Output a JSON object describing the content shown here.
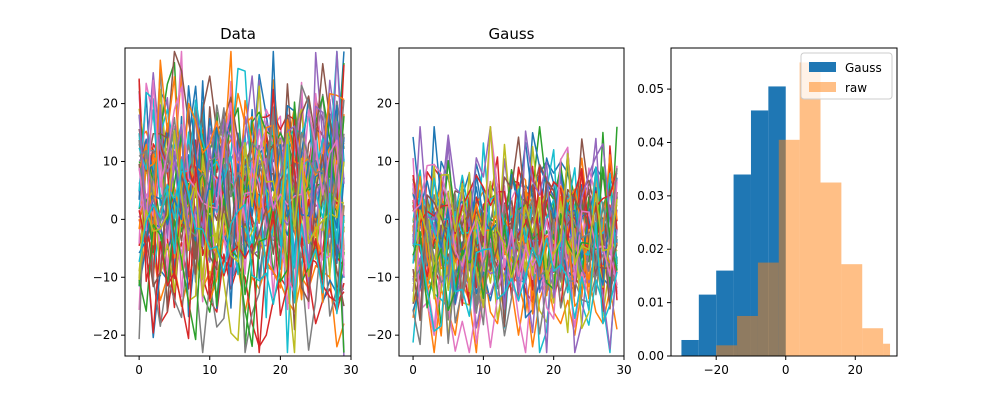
{
  "colors": {
    "cycle": [
      "#1f77b4",
      "#ff7f0e",
      "#2ca02c",
      "#d62728",
      "#9467bd",
      "#8c564b",
      "#e377c2",
      "#7f7f7f",
      "#bcbd22",
      "#17becf"
    ],
    "gauss_bar": "#1f77b4",
    "raw_bar": "#ff7f0e"
  },
  "chart_data": [
    {
      "type": "line",
      "title": "Data",
      "xlabel": "",
      "ylabel": "",
      "xlim": [
        -2,
        30
      ],
      "ylim": [
        -23.6,
        29.6
      ],
      "xticks": [
        0,
        10,
        20,
        30
      ],
      "yticks": [
        -20,
        -10,
        0,
        10,
        20
      ],
      "line_count": 50,
      "points_per_line": 30,
      "value_range_approx": [
        -23,
        29
      ],
      "series": [
        {
          "values": [
            13,
            9,
            8,
            22,
            20,
            2,
            5,
            14,
            23,
            6,
            10,
            4,
            7,
            18,
            5,
            8,
            9,
            25,
            18,
            10,
            12,
            14,
            8,
            6,
            10,
            9,
            12,
            11,
            10,
            29
          ]
        },
        {
          "values": [
            -11,
            -3,
            -5,
            -14,
            -10,
            -8,
            -15,
            -10,
            -6,
            -12,
            -9,
            -13,
            -7,
            -10,
            -8,
            -16,
            -10,
            -12,
            -8,
            -9,
            -11,
            -14,
            -16,
            -10,
            -12,
            -8,
            -9,
            -10,
            -22,
            -18
          ]
        },
        {
          "values": [
            10,
            8,
            12,
            4,
            2,
            -4,
            -2,
            8,
            10,
            5,
            12,
            15,
            6,
            -3,
            5,
            -22,
            -7,
            4,
            2,
            6,
            8,
            5,
            2,
            1,
            -2,
            -6,
            4,
            2,
            10,
            27
          ]
        },
        {
          "values": [
            0,
            -5,
            2,
            -18,
            -16,
            -8,
            -4,
            -12,
            -3,
            -10,
            -14,
            -16,
            -6,
            -12,
            -8,
            -10,
            -18,
            -22,
            -20,
            -14,
            -10,
            -12,
            -8,
            -6,
            -10,
            -18,
            -14,
            -12,
            -16,
            -11
          ]
        },
        {
          "values": [
            5,
            -2,
            6,
            16,
            21,
            4,
            2,
            9,
            18,
            -3,
            4,
            12,
            18,
            10,
            14,
            12,
            8,
            2,
            17,
            14,
            11,
            7,
            -6,
            12,
            8,
            4,
            6,
            24,
            15,
            -24
          ]
        }
      ]
    },
    {
      "type": "line",
      "title": "Gauss",
      "xlabel": "",
      "ylabel": "",
      "xlim": [
        -2,
        30
      ],
      "ylim": [
        -23.6,
        29.6
      ],
      "xticks": [
        0,
        10,
        20,
        30
      ],
      "yticks": [
        -20,
        -10,
        0,
        10,
        20
      ],
      "line_count": 50,
      "points_per_line": 30,
      "value_range_approx": [
        -23,
        16
      ],
      "series": [
        {
          "values": [
            6,
            2,
            4,
            -3,
            10,
            7,
            2,
            4,
            8,
            -4,
            2,
            6,
            4,
            -2,
            8,
            2,
            6,
            4,
            8,
            10,
            8,
            10,
            8,
            2,
            4,
            6,
            9,
            7,
            6,
            8
          ]
        },
        {
          "values": [
            -17,
            -8,
            -14,
            -23,
            -12,
            -16,
            -20,
            -11,
            -14,
            -23,
            -8,
            -16,
            -18,
            -10,
            -12,
            -20,
            -12,
            -22,
            -14,
            -10,
            -16,
            -18,
            -14,
            -20,
            -12,
            -10,
            -16,
            -18,
            -12,
            -19
          ]
        },
        {
          "values": [
            3,
            -3,
            0,
            -5,
            -3,
            -12,
            -6,
            2,
            -1,
            -8,
            -4,
            0,
            2,
            -6,
            -2,
            -8,
            -4,
            -6,
            -10,
            -2,
            -4,
            -6,
            -8,
            -4,
            -2,
            -6,
            -8,
            15,
            -6,
            16
          ]
        },
        {
          "values": [
            -6,
            -10,
            -4,
            -8,
            -12,
            -6,
            -14,
            -8,
            -4,
            -10,
            -12,
            -6,
            -8,
            -14,
            -10,
            -4,
            -8,
            -12,
            -6,
            -10,
            -14,
            -8,
            -4,
            -10,
            -12,
            -6,
            -8,
            -10,
            -4,
            -8
          ]
        },
        {
          "values": [
            -3,
            0,
            -8,
            -2,
            2,
            -10,
            -4,
            0,
            4,
            -6,
            -2,
            -8,
            0,
            -4,
            2,
            -10,
            -6,
            0,
            -4,
            -8,
            -2,
            0,
            -6,
            -4,
            -10,
            -2,
            -6,
            0,
            -8,
            -4
          ]
        }
      ]
    },
    {
      "type": "bar",
      "title": "",
      "xlabel": "",
      "ylabel": "",
      "xlim": [
        -33.0,
        32.0
      ],
      "ylim": [
        0,
        0.0577
      ],
      "xticks": [
        -20,
        0,
        20
      ],
      "yticks": [
        0.0,
        0.01,
        0.02,
        0.03,
        0.04,
        0.05
      ],
      "ytick_labels": [
        "0.00",
        "0.01",
        "0.02",
        "0.03",
        "0.04",
        "0.05"
      ],
      "legend_position": "top-right",
      "series": [
        {
          "name": "Gauss",
          "bin_edges": [
            -30,
            -25,
            -20,
            -15,
            -10,
            -5,
            0
          ],
          "values": [
            0.003,
            0.0115,
            0.016,
            0.034,
            0.046,
            0.0505
          ]
        },
        {
          "name": "raw",
          "bin_edges": [
            -20,
            -14,
            -8,
            -2,
            4,
            10,
            16,
            22,
            28,
            30
          ],
          "values": [
            0.002,
            0.0075,
            0.0175,
            0.0405,
            0.055,
            0.0325,
            0.0172,
            0.0052,
            0.0023
          ]
        }
      ]
    }
  ]
}
